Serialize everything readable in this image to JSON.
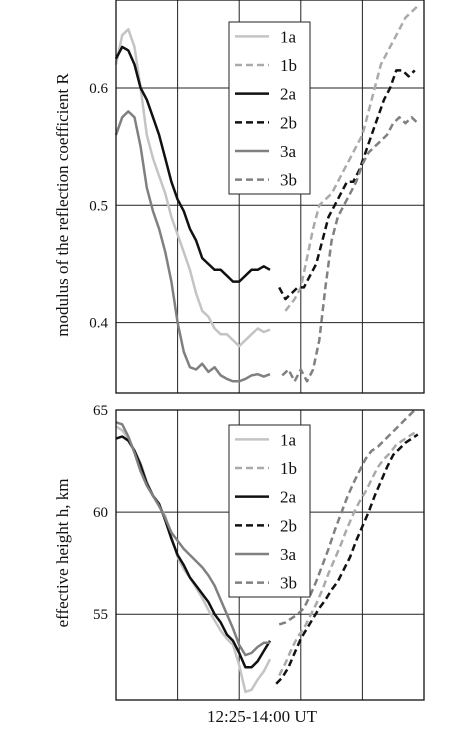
{
  "xlabel": "12:25-14:00 UT",
  "chart_data": [
    {
      "type": "line",
      "ylabel": "modulus of the reflection coefficient R",
      "ylim": [
        0.34,
        0.675
      ],
      "xlim": [
        0,
        100
      ],
      "yticks": [
        0.4,
        0.5,
        0.6
      ],
      "ytick_labels": [
        "0.4",
        "0.5",
        "0.6"
      ],
      "xgrid": [
        20,
        40,
        60,
        80
      ],
      "grid": true,
      "legend_position": "top-center",
      "series": [
        {
          "name": "1a",
          "color": "#c4c4c4",
          "dash": "solid",
          "width": 2.5,
          "x": [
            0,
            2,
            4,
            6,
            8,
            10,
            12,
            14,
            16,
            18,
            20,
            22,
            24,
            26,
            28,
            30,
            32,
            34,
            36,
            38,
            40,
            42,
            44,
            46,
            48,
            50
          ],
          "y": [
            0.62,
            0.645,
            0.65,
            0.635,
            0.6,
            0.56,
            0.54,
            0.525,
            0.51,
            0.49,
            0.475,
            0.46,
            0.445,
            0.425,
            0.41,
            0.405,
            0.395,
            0.39,
            0.39,
            0.385,
            0.38,
            0.385,
            0.39,
            0.395,
            0.392,
            0.394
          ]
        },
        {
          "name": "1b",
          "color": "#aaaaaa",
          "dash": "dashed",
          "width": 2.5,
          "x": [
            55,
            58,
            60,
            62,
            64,
            66,
            68,
            70,
            72,
            74,
            76,
            78,
            80,
            82,
            84,
            86,
            88,
            90,
            92,
            94,
            96,
            98
          ],
          "y": [
            0.41,
            0.42,
            0.43,
            0.455,
            0.48,
            0.5,
            0.505,
            0.51,
            0.52,
            0.53,
            0.54,
            0.55,
            0.56,
            0.58,
            0.6,
            0.62,
            0.63,
            0.64,
            0.65,
            0.66,
            0.665,
            0.67
          ]
        },
        {
          "name": "2a",
          "color": "#111111",
          "dash": "solid",
          "width": 2.5,
          "x": [
            0,
            2,
            4,
            6,
            8,
            10,
            12,
            14,
            16,
            18,
            20,
            22,
            24,
            26,
            28,
            30,
            32,
            34,
            36,
            38,
            40,
            42,
            44,
            46,
            48,
            50
          ],
          "y": [
            0.625,
            0.635,
            0.632,
            0.62,
            0.6,
            0.59,
            0.575,
            0.56,
            0.54,
            0.52,
            0.505,
            0.495,
            0.48,
            0.47,
            0.455,
            0.45,
            0.445,
            0.445,
            0.44,
            0.435,
            0.435,
            0.44,
            0.445,
            0.445,
            0.448,
            0.445
          ]
        },
        {
          "name": "2b",
          "color": "#111111",
          "dash": "dashed",
          "width": 2.5,
          "x": [
            53,
            55,
            57,
            59,
            61,
            63,
            65,
            67,
            69,
            71,
            73,
            75,
            77,
            79,
            81,
            83,
            85,
            87,
            89,
            91,
            93,
            95,
            97
          ],
          "y": [
            0.43,
            0.42,
            0.425,
            0.43,
            0.43,
            0.44,
            0.45,
            0.47,
            0.49,
            0.5,
            0.51,
            0.52,
            0.52,
            0.53,
            0.545,
            0.56,
            0.575,
            0.59,
            0.6,
            0.615,
            0.615,
            0.61,
            0.615
          ]
        },
        {
          "name": "3a",
          "color": "#808080",
          "dash": "solid",
          "width": 2.5,
          "x": [
            0,
            2,
            4,
            6,
            8,
            10,
            12,
            14,
            16,
            18,
            20,
            22,
            24,
            26,
            28,
            30,
            32,
            34,
            36,
            38,
            40,
            42,
            44,
            46,
            48,
            50
          ],
          "y": [
            0.56,
            0.575,
            0.58,
            0.575,
            0.55,
            0.515,
            0.495,
            0.48,
            0.46,
            0.435,
            0.4,
            0.375,
            0.362,
            0.36,
            0.365,
            0.358,
            0.362,
            0.355,
            0.352,
            0.35,
            0.35,
            0.352,
            0.355,
            0.356,
            0.354,
            0.356
          ]
        },
        {
          "name": "3b",
          "color": "#808080",
          "dash": "dashed",
          "width": 2.5,
          "x": [
            54,
            56,
            58,
            60,
            62,
            64,
            66,
            68,
            70,
            72,
            74,
            76,
            78,
            80,
            82,
            84,
            86,
            88,
            90,
            92,
            94,
            96,
            98
          ],
          "y": [
            0.355,
            0.36,
            0.35,
            0.36,
            0.35,
            0.36,
            0.385,
            0.43,
            0.47,
            0.49,
            0.5,
            0.51,
            0.52,
            0.535,
            0.545,
            0.55,
            0.555,
            0.56,
            0.57,
            0.575,
            0.57,
            0.575,
            0.57
          ]
        }
      ]
    },
    {
      "type": "line",
      "ylabel": "effective height h, km",
      "ylim": [
        50.8,
        65
      ],
      "xlim": [
        0,
        100
      ],
      "yticks": [
        55,
        60,
        65
      ],
      "ytick_labels": [
        "55",
        "60",
        "65"
      ],
      "xgrid": [
        20,
        40,
        60,
        80
      ],
      "grid": true,
      "legend_position": "top-center",
      "series": [
        {
          "name": "1a",
          "color": "#c4c4c4",
          "dash": "solid",
          "width": 2.5,
          "x": [
            0,
            2,
            4,
            6,
            8,
            10,
            12,
            14,
            16,
            18,
            20,
            22,
            24,
            26,
            28,
            30,
            32,
            34,
            36,
            38,
            40,
            42,
            44,
            46,
            48,
            50
          ],
          "y": [
            64.2,
            64,
            63.6,
            63,
            62.4,
            61.5,
            60.8,
            60.3,
            59.8,
            58.8,
            57.8,
            57.2,
            56.8,
            56.3,
            55.8,
            55.2,
            54.7,
            54.2,
            53.8,
            53.5,
            52.5,
            51.2,
            51.3,
            51.8,
            52.2,
            52.8
          ]
        },
        {
          "name": "1b",
          "color": "#aaaaaa",
          "dash": "dashed",
          "width": 2.5,
          "x": [
            53,
            55,
            57,
            59,
            61,
            63,
            65,
            67,
            69,
            71,
            73,
            75,
            77,
            79,
            81,
            83,
            85,
            87,
            89,
            91,
            93,
            95,
            97
          ],
          "y": [
            52,
            52.6,
            53.3,
            53.9,
            54.3,
            54.9,
            55.5,
            56.2,
            57.0,
            57.7,
            58.4,
            59.2,
            59.9,
            60.5,
            61.0,
            61.6,
            62.2,
            62.6,
            62.9,
            63.3,
            63.5,
            63.7,
            63.9
          ]
        },
        {
          "name": "2a",
          "color": "#111111",
          "dash": "solid",
          "width": 2.5,
          "x": [
            0,
            2,
            4,
            6,
            8,
            10,
            12,
            14,
            16,
            18,
            20,
            22,
            24,
            26,
            28,
            30,
            32,
            34,
            36,
            38,
            40,
            42,
            44,
            46,
            48,
            50
          ],
          "y": [
            63.6,
            63.7,
            63.5,
            63.0,
            62.3,
            61.4,
            60.8,
            60.4,
            59.6,
            58.7,
            57.9,
            57.4,
            56.8,
            56.4,
            56.0,
            55.6,
            55.0,
            54.6,
            54.0,
            53.7,
            53.1,
            52.4,
            52.4,
            52.7,
            53.2,
            53.7
          ]
        },
        {
          "name": "2b",
          "color": "#111111",
          "dash": "dashed",
          "width": 2.5,
          "x": [
            52,
            54,
            56,
            58,
            60,
            62,
            64,
            66,
            68,
            70,
            72,
            74,
            76,
            78,
            80,
            82,
            84,
            86,
            88,
            90,
            92,
            94,
            96,
            98
          ],
          "y": [
            51.6,
            51.9,
            52.4,
            53.1,
            53.8,
            54.3,
            54.8,
            55.3,
            55.7,
            56.2,
            56.6,
            57.2,
            57.8,
            58.6,
            59.3,
            60.0,
            60.8,
            61.5,
            62.2,
            62.8,
            63.1,
            63.4,
            63.6,
            63.8
          ]
        },
        {
          "name": "3a",
          "color": "#808080",
          "dash": "solid",
          "width": 2.5,
          "x": [
            0,
            2,
            4,
            6,
            8,
            10,
            12,
            14,
            16,
            18,
            20,
            22,
            24,
            26,
            28,
            30,
            32,
            34,
            36,
            38,
            40,
            42,
            44,
            46,
            48,
            50
          ],
          "y": [
            64.4,
            64.3,
            63.7,
            62.9,
            62.0,
            61.3,
            60.8,
            60.3,
            59.7,
            59.0,
            58.6,
            58.2,
            57.9,
            57.6,
            57.3,
            56.9,
            56.4,
            55.7,
            55.0,
            54.3,
            53.5,
            53.0,
            53.1,
            53.4,
            53.6,
            53.6
          ]
        },
        {
          "name": "3b",
          "color": "#808080",
          "dash": "dashed",
          "width": 2.5,
          "x": [
            53,
            55,
            57,
            59,
            61,
            63,
            65,
            67,
            69,
            71,
            73,
            75,
            77,
            79,
            81,
            83,
            85,
            87,
            89,
            91,
            93,
            95,
            97
          ],
          "y": [
            54.5,
            54.6,
            54.8,
            55.0,
            55.3,
            55.9,
            56.6,
            57.4,
            58.2,
            59.1,
            59.9,
            60.7,
            61.4,
            62.0,
            62.6,
            63.0,
            63.2,
            63.5,
            63.8,
            64.1,
            64.4,
            64.7,
            65.0
          ]
        }
      ]
    }
  ]
}
